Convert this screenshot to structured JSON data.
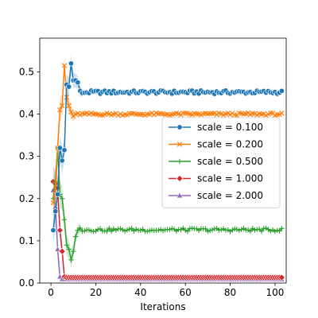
{
  "chart_data": {
    "type": "line",
    "xlabel": "Iterations",
    "ylabel": "",
    "xlim": [
      -5,
      105
    ],
    "ylim": [
      0,
      0.58
    ],
    "xticks": [
      0,
      20,
      40,
      60,
      80,
      100
    ],
    "yticks": [
      0.0,
      0.1,
      0.2,
      0.3,
      0.4,
      0.5
    ],
    "grid": false,
    "legend_position": "center-right",
    "series": [
      {
        "name": "scale = 0.100",
        "color": "#1f77b4",
        "marker": "circle",
        "early": [
          [
            1,
            0.125
          ],
          [
            2,
            0.17
          ],
          [
            3,
            0.21
          ],
          [
            4,
            0.32
          ],
          [
            5,
            0.29
          ],
          [
            6,
            0.315
          ],
          [
            7,
            0.47
          ],
          [
            8,
            0.465
          ],
          [
            9,
            0.52
          ],
          [
            10,
            0.48
          ],
          [
            11,
            0.48
          ],
          [
            12,
            0.475
          ],
          [
            13,
            0.455
          ],
          [
            14,
            0.45
          ]
        ],
        "plateau": 0.452,
        "plateau_start": 15,
        "plateau_end": 103,
        "noise": 0.004
      },
      {
        "name": "scale = 0.200",
        "color": "#ff7f0e",
        "marker": "x",
        "early": [
          [
            1,
            0.19
          ],
          [
            2,
            0.21
          ],
          [
            3,
            0.32
          ],
          [
            4,
            0.41
          ],
          [
            5,
            0.42
          ],
          [
            6,
            0.515
          ],
          [
            7,
            0.44
          ],
          [
            8,
            0.42
          ],
          [
            9,
            0.405
          ],
          [
            10,
            0.395
          ],
          [
            11,
            0.4
          ]
        ],
        "plateau": 0.4,
        "plateau_start": 12,
        "plateau_end": 103,
        "noise": 0.003
      },
      {
        "name": "scale = 0.500",
        "color": "#2ca02c",
        "marker": "plus",
        "early": [
          [
            1,
            0.2
          ],
          [
            2,
            0.24
          ],
          [
            3,
            0.32
          ],
          [
            4,
            0.21
          ],
          [
            5,
            0.2
          ],
          [
            6,
            0.15
          ],
          [
            7,
            0.09
          ],
          [
            8,
            0.08
          ],
          [
            9,
            0.055
          ],
          [
            10,
            0.075
          ],
          [
            11,
            0.11
          ],
          [
            12,
            0.125
          ],
          [
            13,
            0.13
          ]
        ],
        "plateau": 0.126,
        "plateau_start": 14,
        "plateau_end": 103,
        "noise": 0.004
      },
      {
        "name": "scale = 1.000",
        "color": "#d62728",
        "marker": "diamond",
        "early": [
          [
            1,
            0.24
          ],
          [
            2,
            0.235
          ],
          [
            3,
            0.225
          ],
          [
            4,
            0.125
          ],
          [
            5,
            0.075
          ],
          [
            6,
            0.015
          ]
        ],
        "plateau": 0.013,
        "plateau_start": 7,
        "plateau_end": 103,
        "noise": 0.0
      },
      {
        "name": "scale = 2.000",
        "color": "#9467bd",
        "marker": "triangle",
        "early": [
          [
            1,
            0.22
          ],
          [
            2,
            0.18
          ],
          [
            3,
            0.08
          ],
          [
            4,
            0.015
          ]
        ],
        "plateau": 0.009,
        "plateau_start": 5,
        "plateau_end": 103,
        "noise": 0.0
      }
    ]
  }
}
